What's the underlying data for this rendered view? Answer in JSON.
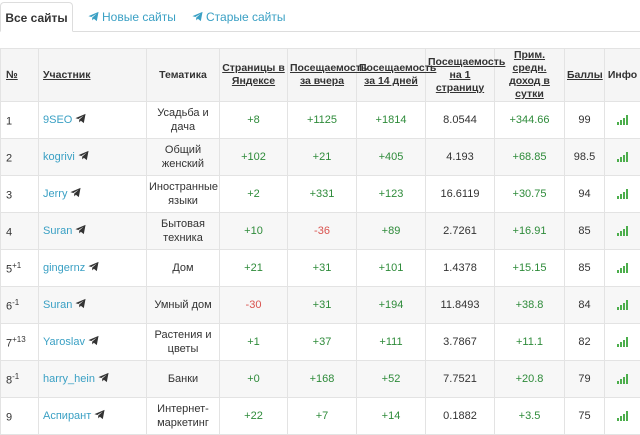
{
  "tabs": {
    "all": "Все сайты",
    "new": "Новые сайты",
    "old": "Старые сайты"
  },
  "table": {
    "headers": {
      "num": "№",
      "participant": "Участник",
      "topic": "Тематика",
      "pages": "Страницы в Яндексе",
      "visits_yesterday": "Посещаемость за вчера",
      "visits_14": "Посещаемость за 14 дней",
      "visits_per_page": "Посещаемость на 1 страницу",
      "income": "Прим. средн. доход в сутки",
      "score": "Баллы",
      "info": "Инфо"
    },
    "rows": [
      {
        "num": "1",
        "delta": "",
        "name": "9SEO",
        "topic": "Усадьба и дача",
        "pages": "+8",
        "yesterday": "+1125",
        "d14": "+1814",
        "per_page": "8.0544",
        "income": "+344.66",
        "score": "99"
      },
      {
        "num": "2",
        "delta": "",
        "name": "kogrivi",
        "topic": "Общий женский",
        "pages": "+102",
        "yesterday": "+21",
        "d14": "+405",
        "per_page": "4.193",
        "income": "+68.85",
        "score": "98.5"
      },
      {
        "num": "3",
        "delta": "",
        "name": "Jerry",
        "topic": "Иностранные языки",
        "pages": "+2",
        "yesterday": "+331",
        "d14": "+123",
        "per_page": "16.6119",
        "income": "+30.75",
        "score": "94"
      },
      {
        "num": "4",
        "delta": "",
        "name": "Suran",
        "topic": "Бытовая техника",
        "pages": "+10",
        "yesterday": "-36",
        "d14": "+89",
        "per_page": "2.7261",
        "income": "+16.91",
        "score": "85"
      },
      {
        "num": "5",
        "delta": "+1",
        "name": "gingernz",
        "topic": "Дом",
        "pages": "+21",
        "yesterday": "+31",
        "d14": "+101",
        "per_page": "1.4378",
        "income": "+15.15",
        "score": "85"
      },
      {
        "num": "6",
        "delta": "-1",
        "name": "Suran",
        "topic": "Умный дом",
        "pages": "-30",
        "yesterday": "+31",
        "d14": "+194",
        "per_page": "11.8493",
        "income": "+38.8",
        "score": "84"
      },
      {
        "num": "7",
        "delta": "+13",
        "name": "Yaroslav",
        "topic": "Растения и цветы",
        "pages": "+1",
        "yesterday": "+37",
        "d14": "+111",
        "per_page": "3.7867",
        "income": "+11.1",
        "score": "82"
      },
      {
        "num": "8",
        "delta": "-1",
        "name": "harry_hein",
        "topic": "Банки",
        "pages": "+0",
        "yesterday": "+168",
        "d14": "+52",
        "per_page": "7.7521",
        "income": "+20.8",
        "score": "79"
      },
      {
        "num": "9",
        "delta": "",
        "name": "Аспирант",
        "topic": "Интернет-маркетинг",
        "pages": "+22",
        "yesterday": "+7",
        "d14": "+14",
        "per_page": "0.1882",
        "income": "+3.5",
        "score": "75"
      }
    ]
  },
  "colors": {
    "link": "#3aa0c4",
    "positive": "#2e8b3a",
    "negative": "#d9534f",
    "bars": "#4cae4c"
  },
  "icons": {
    "row_user": "telegram-icon",
    "tab_icon": "telegram-icon",
    "info": "signal-bars-icon"
  }
}
